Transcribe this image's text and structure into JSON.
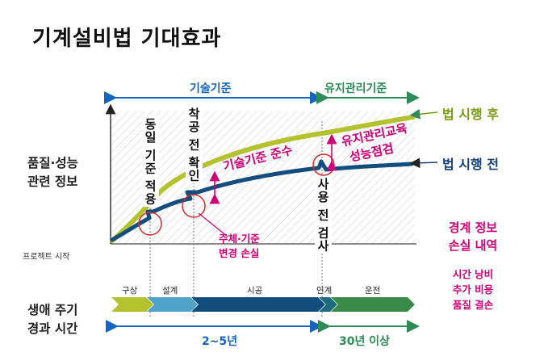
{
  "title": "기계설비법 기대효과",
  "top_axis": {
    "left_label": "기술기준",
    "right_label": "유지관리기준"
  },
  "y_label_lines": [
    "품질·성능",
    "관련 정보"
  ],
  "origin_label": "프로젝트 시작",
  "milestones": [
    "동일 기준 적용",
    "착공 전 확인",
    "사용 전 검사"
  ],
  "annotations": {
    "tech_compliance": "기술기준 준수",
    "maintenance_lines": [
      "유지관리교육",
      "성능점검"
    ],
    "subject_loss_lines": [
      "주체·기준",
      "변경 손실"
    ]
  },
  "legend": {
    "after": "법 시행 후",
    "before": "법 시행 전"
  },
  "boundary_loss_lines": [
    "경계 정보",
    "손실 내역"
  ],
  "costs_lines": [
    "시간 낭비",
    "추가 비용",
    "품질 결손"
  ],
  "lifecycle_label_lines": [
    "생애 주기",
    "경과 시간"
  ],
  "stages": [
    "구상",
    "설계",
    "시공",
    "인계",
    "운전"
  ],
  "bottom_axis": {
    "left_label": "2~5년",
    "right_label": "30년 이상"
  },
  "colors": {
    "after": "#b5c230",
    "before": "#124d7e",
    "blue": "#1565c0",
    "green": "#2e8b57",
    "magenta": "#cc0077"
  }
}
